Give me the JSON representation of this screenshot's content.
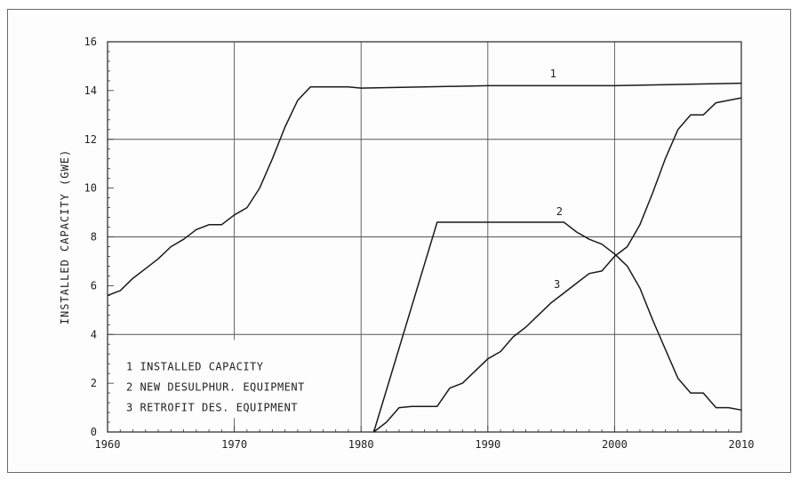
{
  "chart_data": {
    "type": "line",
    "title": "",
    "xlabel": "",
    "ylabel": "INSTALLED CAPACITY  (GWE)",
    "xlim": [
      1960,
      2010
    ],
    "ylim": [
      0,
      16
    ],
    "xticks": [
      1960,
      1970,
      1980,
      1990,
      2000,
      2010
    ],
    "yticks": [
      0,
      2,
      4,
      6,
      8,
      10,
      12,
      14,
      16
    ],
    "grid": true,
    "legend": {
      "placement": "bottom-left",
      "entries": [
        "1 INSTALLED CAPACITY",
        "2 NEW DESULPHUR. EQUIPMENT",
        "3 RETROFIT DES. EQUIPMENT"
      ]
    },
    "series": [
      {
        "label": "1",
        "points": [
          [
            1960,
            5.6
          ],
          [
            1961,
            5.8
          ],
          [
            1962,
            6.3
          ],
          [
            1963,
            6.7
          ],
          [
            1964,
            7.1
          ],
          [
            1965,
            7.6
          ],
          [
            1966,
            7.9
          ],
          [
            1967,
            8.3
          ],
          [
            1968,
            8.5
          ],
          [
            1969,
            8.5
          ],
          [
            1970,
            8.9
          ],
          [
            1971,
            9.2
          ],
          [
            1972,
            10.0
          ],
          [
            1973,
            11.2
          ],
          [
            1974,
            12.5
          ],
          [
            1975,
            13.6
          ],
          [
            1976,
            14.15
          ],
          [
            1977,
            14.15
          ],
          [
            1978,
            14.15
          ],
          [
            1979,
            14.15
          ],
          [
            1980,
            14.1
          ],
          [
            1985,
            14.15
          ],
          [
            1990,
            14.2
          ],
          [
            1995,
            14.2
          ],
          [
            2000,
            14.2
          ],
          [
            2005,
            14.25
          ],
          [
            2010,
            14.3
          ]
        ]
      },
      {
        "label": "2",
        "points": [
          [
            1981,
            0.0
          ],
          [
            1986,
            8.6
          ],
          [
            1996,
            8.6
          ],
          [
            1997,
            8.2
          ],
          [
            1998,
            7.9
          ],
          [
            1999,
            7.7
          ],
          [
            2000,
            7.3
          ],
          [
            2001,
            6.8
          ],
          [
            2002,
            5.9
          ],
          [
            2003,
            4.6
          ],
          [
            2004,
            3.4
          ],
          [
            2005,
            2.2
          ],
          [
            2006,
            1.6
          ],
          [
            2007,
            1.6
          ],
          [
            2008,
            1.0
          ],
          [
            2009,
            1.0
          ],
          [
            2010,
            0.9
          ]
        ]
      },
      {
        "label": "3",
        "points": [
          [
            1981,
            0.0
          ],
          [
            1982,
            0.4
          ],
          [
            1983,
            1.0
          ],
          [
            1984,
            1.05
          ],
          [
            1985,
            1.05
          ],
          [
            1986,
            1.05
          ],
          [
            1987,
            1.8
          ],
          [
            1988,
            2.0
          ],
          [
            1989,
            2.5
          ],
          [
            1990,
            3.0
          ],
          [
            1991,
            3.3
          ],
          [
            1992,
            3.9
          ],
          [
            1993,
            4.3
          ],
          [
            1994,
            4.8
          ],
          [
            1995,
            5.3
          ],
          [
            1996,
            5.7
          ],
          [
            1997,
            6.1
          ],
          [
            1998,
            6.5
          ],
          [
            1999,
            6.6
          ],
          [
            2000,
            7.2
          ],
          [
            2001,
            7.6
          ],
          [
            2002,
            8.5
          ],
          [
            2003,
            9.8
          ],
          [
            2004,
            11.2
          ],
          [
            2005,
            12.4
          ],
          [
            2006,
            13.0
          ],
          [
            2007,
            13.0
          ],
          [
            2008,
            13.5
          ],
          [
            2009,
            13.6
          ],
          [
            2010,
            13.7
          ]
        ]
      }
    ]
  }
}
